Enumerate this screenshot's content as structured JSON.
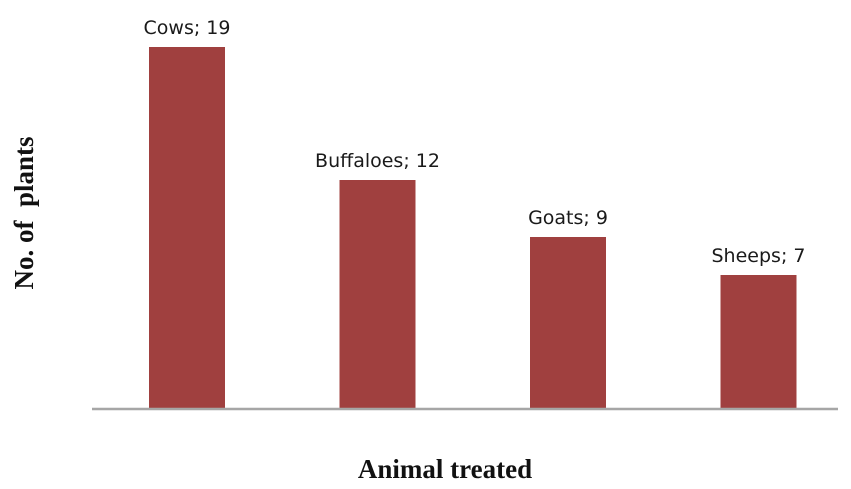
{
  "chart_data": {
    "type": "bar",
    "categories": [
      "Cows",
      "Buffaloes",
      "Goats",
      "Sheeps"
    ],
    "values": [
      19,
      12,
      9,
      7
    ],
    "data_labels": [
      "Cows; 19",
      "Buffaloes; 12",
      "Goats; 9",
      "Sheeps; 7"
    ],
    "title": "",
    "xlabel": "Animal treated",
    "ylabel": "No. of  plants",
    "ylim": [
      0,
      19
    ],
    "grid": false,
    "legend": "none",
    "bar_color": "#a0403f",
    "axis_color": "#a6a6a6"
  }
}
